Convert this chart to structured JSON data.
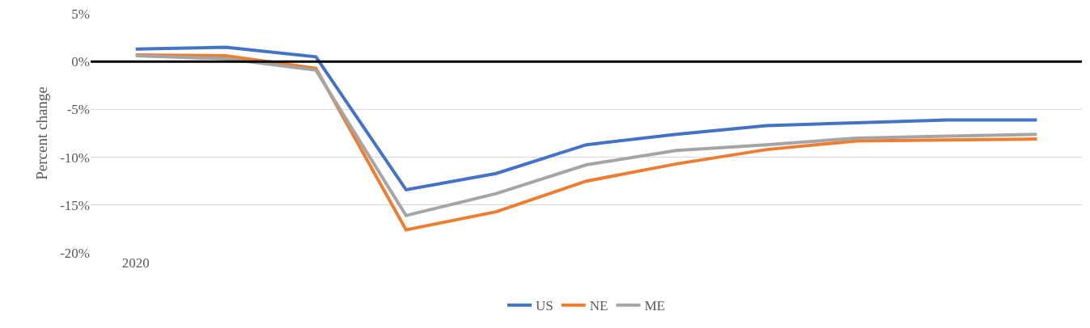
{
  "chart_data": {
    "type": "line",
    "ylabel": "Percent change",
    "categories": [
      "2020",
      null,
      null,
      null,
      null,
      null,
      null,
      null,
      null,
      null,
      null
    ],
    "series": [
      {
        "name": "US",
        "color": "#4472c4",
        "values": [
          1.3,
          1.5,
          0.5,
          -13.4,
          -11.7,
          -8.7,
          -7.6,
          -6.7,
          -6.4,
          -6.1,
          -6.1
        ]
      },
      {
        "name": "NE",
        "color": "#ed7d31",
        "values": [
          0.7,
          0.6,
          -0.7,
          -17.6,
          -15.7,
          -12.5,
          -10.7,
          -9.2,
          -8.3,
          -8.2,
          -8.1
        ]
      },
      {
        "name": "ME",
        "color": "#a5a5a5",
        "values": [
          0.6,
          0.3,
          -0.9,
          -16.1,
          -13.8,
          -10.8,
          -9.3,
          -8.7,
          -8.0,
          -7.8,
          -7.6
        ]
      }
    ],
    "ylim": [
      -20,
      5
    ],
    "yticks": [
      {
        "value": -20,
        "label": "-20%"
      },
      {
        "value": -15,
        "label": "-15%"
      },
      {
        "value": -10,
        "label": "-10%"
      },
      {
        "value": -5,
        "label": "-5%"
      },
      {
        "value": 0,
        "label": "0%"
      },
      {
        "value": 5,
        "label": "5%"
      }
    ],
    "ref_lines": [
      {
        "axis": "y",
        "value": 0,
        "label": null,
        "color": "#000000"
      }
    ],
    "grid": "y",
    "legend": "bottom",
    "marker": "none",
    "line_style": "solid"
  }
}
